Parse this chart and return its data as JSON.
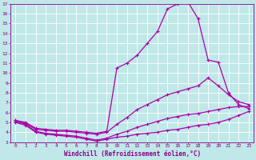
{
  "xlabel": "Windchill (Refroidissement éolien,°C)",
  "bg_color": "#c0e8e8",
  "grid_color": "#ffffff",
  "line_color": "#aa00aa",
  "x_values": [
    0,
    1,
    2,
    3,
    4,
    5,
    6,
    7,
    8,
    9,
    10,
    11,
    12,
    13,
    14,
    15,
    16,
    17,
    18,
    19,
    20,
    21,
    22,
    23
  ],
  "line1_y": [
    5.0,
    4.7,
    4.0,
    3.8,
    3.7,
    3.6,
    3.5,
    3.3,
    3.1,
    3.3,
    3.5,
    3.6,
    3.8,
    3.9,
    4.0,
    4.2,
    4.3,
    4.5,
    4.7,
    4.8,
    5.0,
    5.3,
    5.7,
    6.1
  ],
  "line2_y": [
    5.1,
    4.8,
    4.1,
    3.9,
    3.8,
    3.7,
    3.6,
    3.4,
    3.2,
    3.4,
    3.8,
    4.1,
    4.5,
    4.8,
    5.1,
    5.4,
    5.6,
    5.8,
    5.9,
    6.1,
    6.3,
    6.5,
    6.6,
    6.6
  ],
  "line3_y": [
    5.2,
    4.9,
    4.3,
    4.2,
    4.1,
    4.1,
    4.0,
    3.9,
    3.8,
    4.0,
    4.8,
    5.5,
    6.3,
    6.8,
    7.3,
    7.8,
    8.1,
    8.4,
    8.7,
    9.5,
    8.7,
    7.8,
    7.1,
    6.8
  ],
  "line4_y": [
    5.2,
    5.0,
    4.4,
    4.3,
    4.2,
    4.2,
    4.1,
    4.0,
    3.9,
    4.1,
    10.5,
    11.0,
    11.8,
    13.0,
    14.2,
    16.5,
    17.0,
    17.2,
    15.5,
    11.3,
    11.1,
    8.0,
    6.8,
    6.4
  ],
  "ylim": [
    3,
    17
  ],
  "xlim": [
    -0.5,
    23.5
  ],
  "yticks": [
    3,
    4,
    5,
    6,
    7,
    8,
    9,
    10,
    11,
    12,
    13,
    14,
    15,
    16,
    17
  ],
  "xticks": [
    0,
    1,
    2,
    3,
    4,
    5,
    6,
    7,
    8,
    9,
    10,
    11,
    12,
    13,
    14,
    15,
    16,
    17,
    18,
    19,
    20,
    21,
    22,
    23
  ]
}
